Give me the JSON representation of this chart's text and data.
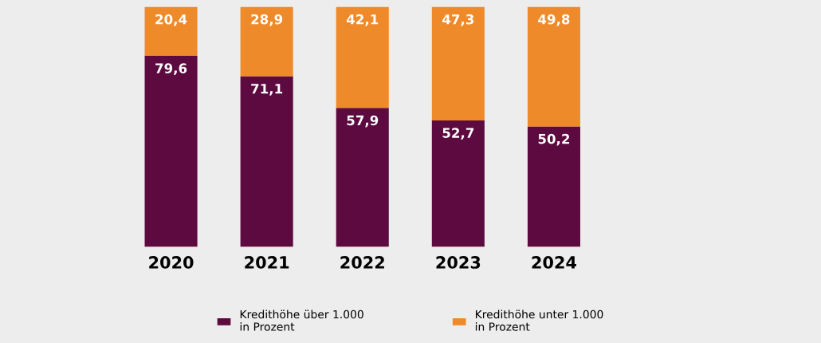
{
  "chart_data": {
    "type": "bar",
    "stacked": true,
    "legend": "bottom",
    "grid": false,
    "categories": [
      "2020",
      "2021",
      "2022",
      "2023",
      "2024"
    ],
    "series": [
      {
        "name": "Kredithöhe über 1.000\nin Prozent",
        "color": "#5c0a3f",
        "values": [
          79.6,
          71.1,
          57.9,
          52.7,
          50.2
        ],
        "value_labels": [
          "79,6",
          "71,1",
          "57,9",
          "52,7",
          "50,2"
        ]
      },
      {
        "name": "Kredithöhe unter 1.000\nin Prozent",
        "color": "#ef8a2b",
        "values": [
          20.4,
          28.9,
          42.1,
          47.3,
          49.8
        ],
        "value_labels": [
          "20,4",
          "28,9",
          "42,1",
          "47,3",
          "49,8"
        ]
      }
    ]
  }
}
